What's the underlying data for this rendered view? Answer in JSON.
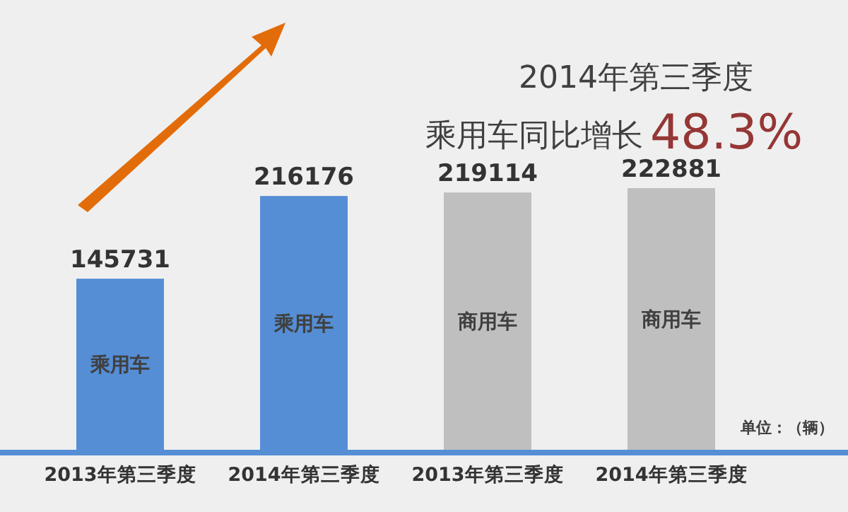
{
  "chart_data": {
    "type": "bar",
    "title": "2014年第三季度",
    "subtitle": "乘用车同比增长",
    "annotations": [
      "48.3%",
      "单位：（辆）"
    ],
    "categories": [
      "2013年第三季度",
      "2014年第三季度",
      "2013年第三季度",
      "2014年第三季度"
    ],
    "series": [
      {
        "name": "乘用车",
        "color": "#558ed5",
        "values": [
          145731,
          216176,
          null,
          null
        ]
      },
      {
        "name": "商用车",
        "color": "#bfbfbf",
        "values": [
          null,
          null,
          219114,
          222881
        ]
      }
    ],
    "data_labels": true
  }
}
